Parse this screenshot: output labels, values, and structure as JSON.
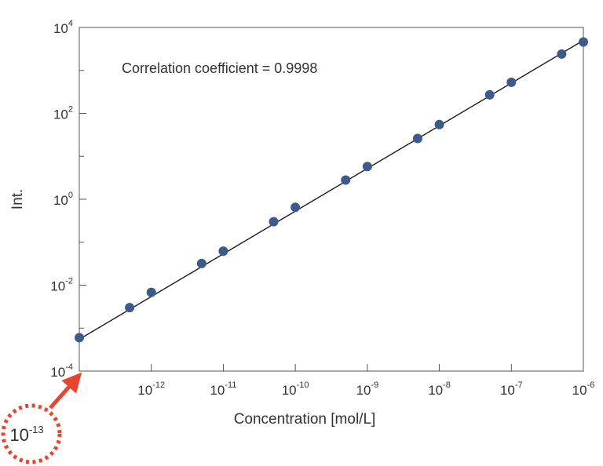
{
  "chart_data": {
    "type": "scatter",
    "title": "",
    "xlabel": "Concentration [mol/L]",
    "ylabel": "Int.",
    "xscale": "log",
    "yscale": "log",
    "xlim": [
      1e-13,
      1e-06
    ],
    "ylim": [
      0.0001,
      10000.0
    ],
    "grid": false,
    "legend": "none",
    "x_ticks": [
      {
        "value": 1e-12,
        "base": "10",
        "exp": "-12"
      },
      {
        "value": 1e-11,
        "base": "10",
        "exp": "-11"
      },
      {
        "value": 1e-10,
        "base": "10",
        "exp": "-10"
      },
      {
        "value": 1e-09,
        "base": "10",
        "exp": "-9"
      },
      {
        "value": 1e-08,
        "base": "10",
        "exp": "-8"
      },
      {
        "value": 1e-07,
        "base": "10",
        "exp": "-7"
      },
      {
        "value": 1e-06,
        "base": "10",
        "exp": "-6"
      }
    ],
    "y_ticks": [
      {
        "value": 0.0001,
        "base": "10",
        "exp": "-4"
      },
      {
        "value": 0.01,
        "base": "10",
        "exp": "-2"
      },
      {
        "value": 1,
        "base": "10",
        "exp": "0"
      },
      {
        "value": 100,
        "base": "10",
        "exp": "2"
      },
      {
        "value": 10000,
        "base": "10",
        "exp": "4"
      }
    ],
    "points": [
      {
        "x": 1e-13,
        "y": 0.0006
      },
      {
        "x": 5e-13,
        "y": 0.003
      },
      {
        "x": 1e-12,
        "y": 0.0068
      },
      {
        "x": 5e-12,
        "y": 0.032
      },
      {
        "x": 1e-11,
        "y": 0.062
      },
      {
        "x": 5e-11,
        "y": 0.3
      },
      {
        "x": 1e-10,
        "y": 0.65
      },
      {
        "x": 5e-10,
        "y": 2.8
      },
      {
        "x": 1e-09,
        "y": 5.8
      },
      {
        "x": 5e-09,
        "y": 26
      },
      {
        "x": 1e-08,
        "y": 55
      },
      {
        "x": 5e-08,
        "y": 270
      },
      {
        "x": 1e-07,
        "y": 530
      },
      {
        "x": 5e-07,
        "y": 2400
      },
      {
        "x": 1e-06,
        "y": 4600
      }
    ],
    "fit_line": [
      {
        "x": 1e-13,
        "y": 0.00055
      },
      {
        "x": 1e-06,
        "y": 5000
      }
    ],
    "annotation": "Correlation coefficient = 0.9998",
    "callout": {
      "base": "10",
      "exp": "-13"
    },
    "colors": {
      "points": "#3d5a8a",
      "line": "#1a1a1a",
      "frame": "#555555",
      "callout": "#e8452c",
      "text": "#333333"
    }
  }
}
